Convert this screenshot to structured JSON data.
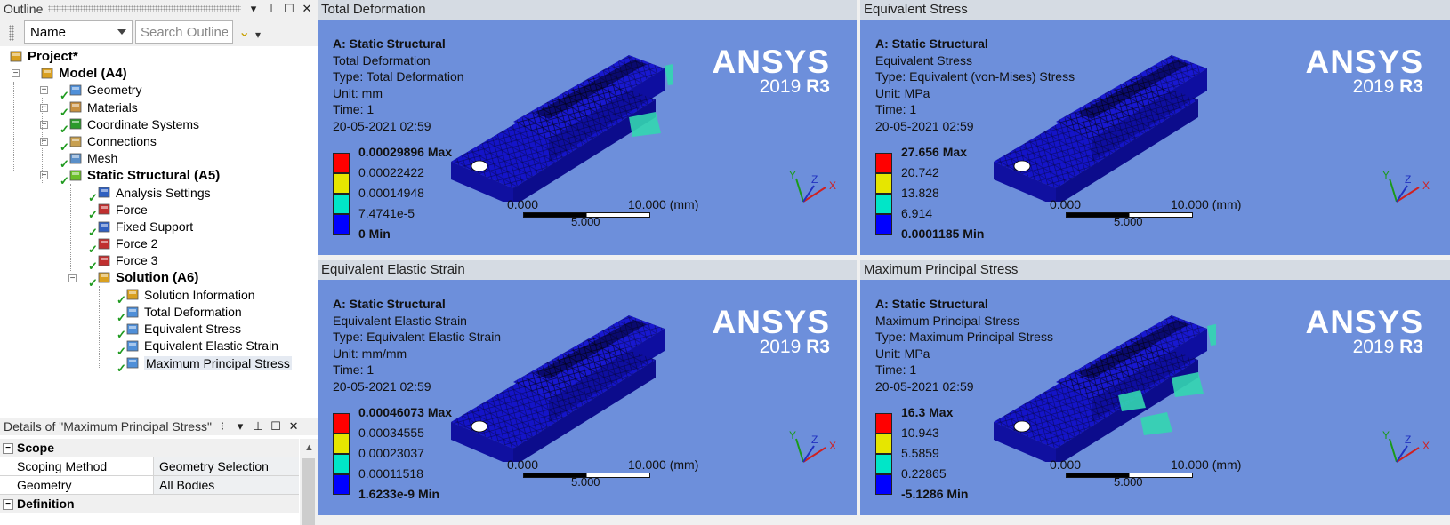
{
  "outline": {
    "title": "Outline",
    "controls": [
      "▾",
      "📌",
      "☐",
      "✕"
    ],
    "filter_select": "Name",
    "search_placeholder": "Search Outline",
    "tree": [
      {
        "label": "Project*",
        "icon": "project-icon",
        "level": 0,
        "bold": true,
        "expander": ""
      },
      {
        "label": "Model (A4)",
        "icon": "model-icon",
        "level": 1,
        "bold": true,
        "expander": "−"
      },
      {
        "label": "Geometry",
        "icon": "geometry-icon",
        "level": 2,
        "expander": "+",
        "check": true
      },
      {
        "label": "Materials",
        "icon": "materials-icon",
        "level": 2,
        "expander": "+",
        "check": true
      },
      {
        "label": "Coordinate Systems",
        "icon": "coordinate-systems-icon",
        "level": 2,
        "expander": "+",
        "check": true
      },
      {
        "label": "Connections",
        "icon": "connections-icon",
        "level": 2,
        "expander": "+",
        "check": true
      },
      {
        "label": "Mesh",
        "icon": "mesh-icon",
        "level": 2,
        "expander": "",
        "check": true
      },
      {
        "label": "Static Structural (A5)",
        "icon": "static-structural-icon",
        "level": 2,
        "bold": true,
        "expander": "−",
        "check": true
      },
      {
        "label": "Analysis Settings",
        "icon": "analysis-settings-icon",
        "level": 3,
        "check": true
      },
      {
        "label": "Force",
        "icon": "force-icon",
        "level": 3,
        "check": true
      },
      {
        "label": "Fixed Support",
        "icon": "fixed-support-icon",
        "level": 3,
        "check": true
      },
      {
        "label": "Force 2",
        "icon": "force-icon",
        "level": 3,
        "check": true
      },
      {
        "label": "Force 3",
        "icon": "force-icon",
        "level": 3,
        "check": true
      },
      {
        "label": "Solution (A6)",
        "icon": "solution-icon",
        "level": 3,
        "bold": true,
        "expander": "−",
        "check": true
      },
      {
        "label": "Solution Information",
        "icon": "solution-information-icon",
        "level": 4,
        "check": true
      },
      {
        "label": "Total Deformation",
        "icon": "result-icon",
        "level": 4,
        "check": true
      },
      {
        "label": "Equivalent Stress",
        "icon": "result-icon",
        "level": 4,
        "check": true
      },
      {
        "label": "Equivalent Elastic Strain",
        "icon": "result-icon",
        "level": 4,
        "check": true
      },
      {
        "label": "Maximum Principal Stress",
        "icon": "result-icon",
        "level": 4,
        "check": true,
        "selected": true
      }
    ]
  },
  "details": {
    "title": "Details of \"Maximum Principal Stress\"",
    "scope_label": "Scope",
    "rows": [
      {
        "key": "Scoping Method",
        "value": "Geometry Selection"
      },
      {
        "key": "Geometry",
        "value": "All Bodies"
      }
    ],
    "definition_label": "Definition"
  },
  "colors": {
    "viewport_bg": "#6d8fdb",
    "legend": [
      "#ff0000",
      "#e6e600",
      "#00e6c8",
      "#0000ff"
    ]
  },
  "viewports": [
    {
      "title": "Total Deformation",
      "analysis": "A: Static Structural",
      "result": "Total Deformation",
      "type": "Type: Total Deformation",
      "unit": "Unit: mm",
      "time": "Time: 1",
      "date": "20-05-2021 02:59",
      "legend": [
        "0.00029896 Max",
        "0.00022422",
        "0.00014948",
        "7.4741e-5",
        "0 Min"
      ],
      "hotspots": [
        "#33d6b0",
        "#33d6b0"
      ]
    },
    {
      "title": "Equivalent Stress",
      "analysis": "A: Static Structural",
      "result": "Equivalent Stress",
      "type": "Type: Equivalent (von-Mises) Stress",
      "unit": "Unit: MPa",
      "time": "Time: 1",
      "date": "20-05-2021 02:59",
      "legend": [
        "27.656 Max",
        "20.742",
        "13.828",
        "6.914",
        "0.0001185 Min"
      ],
      "hotspots": []
    },
    {
      "title": "Equivalent Elastic Strain",
      "analysis": "A: Static Structural",
      "result": "Equivalent Elastic Strain",
      "type": "Type: Equivalent Elastic Strain",
      "unit": "Unit: mm/mm",
      "time": "Time: 1",
      "date": "20-05-2021 02:59",
      "legend": [
        "0.00046073 Max",
        "0.00034555",
        "0.00023037",
        "0.00011518",
        "1.6233e-9 Min"
      ],
      "hotspots": []
    },
    {
      "title": "Maximum Principal Stress",
      "analysis": "A: Static Structural",
      "result": "Maximum Principal Stress",
      "type": "Type: Maximum Principal Stress",
      "unit": "Unit: MPa",
      "time": "Time: 1",
      "date": "20-05-2021 02:59",
      "legend": [
        "16.3 Max",
        "10.943",
        "5.5859",
        "0.22865",
        "-5.1286 Min"
      ],
      "hotspots": [
        "#33d6b0",
        "#33d6b0",
        "#33d6b0",
        "#33d6b0"
      ]
    }
  ],
  "logo": {
    "brand": "ANSYS",
    "version": "2019",
    "release": "R3"
  },
  "scale_bar": {
    "left": "0.000",
    "right": "10.000 (mm)",
    "mid": "5.000"
  },
  "triad": {
    "x": "X",
    "y": "Y",
    "z": "Z"
  }
}
